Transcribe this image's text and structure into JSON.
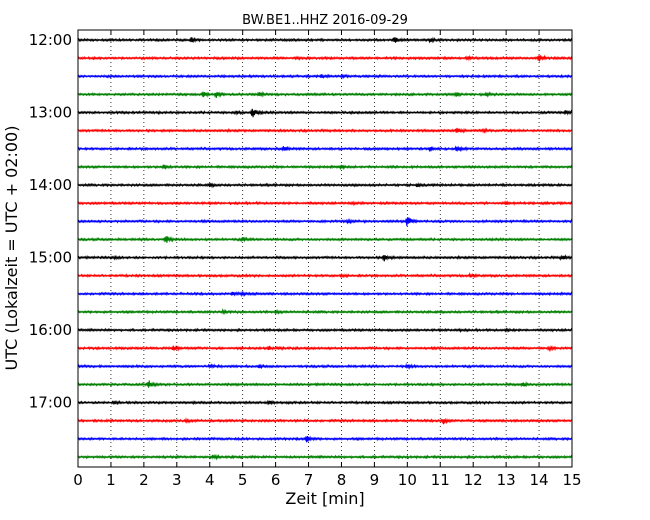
{
  "chart_data": {
    "type": "line",
    "title": "BW.BE1..HHZ 2016-09-29",
    "xlabel": "Zeit  [min]",
    "ylabel": "UTC (Lokalzeit = UTC + 02:00)",
    "xlim": [
      0,
      15
    ],
    "x_ticks": [
      "0",
      "1",
      "2",
      "3",
      "4",
      "5",
      "6",
      "7",
      "8",
      "9",
      "10",
      "11",
      "12",
      "13",
      "14",
      "15"
    ],
    "y_ticks": [
      "12:00",
      "13:00",
      "14:00",
      "15:00",
      "16:00",
      "17:00"
    ],
    "grid": "vertical-dotted",
    "trace_colors": [
      "#000000",
      "#ff0000",
      "#0000ff",
      "#008000"
    ],
    "traces": [
      {
        "start": "12:00",
        "events": [
          {
            "t": 3.45,
            "amp": 0.22
          },
          {
            "t": 9.6,
            "amp": 0.3
          },
          {
            "t": 10.7,
            "amp": 0.2
          }
        ]
      },
      {
        "start": "12:15",
        "events": [
          {
            "t": 6.6,
            "amp": 0.1
          },
          {
            "t": 11.8,
            "amp": 0.15
          },
          {
            "t": 14.0,
            "amp": 0.35
          }
        ]
      },
      {
        "start": "12:30",
        "events": [
          {
            "t": 7.4,
            "amp": 0.15
          },
          {
            "t": 8.0,
            "amp": 0.1
          }
        ]
      },
      {
        "start": "12:45",
        "events": [
          {
            "t": 3.8,
            "amp": 0.25
          },
          {
            "t": 4.2,
            "amp": 0.3
          },
          {
            "t": 5.5,
            "amp": 0.2
          },
          {
            "t": 11.5,
            "amp": 0.2
          },
          {
            "t": 12.4,
            "amp": 0.18
          }
        ]
      },
      {
        "start": "13:00",
        "events": [
          {
            "t": 5.3,
            "amp": 0.55
          },
          {
            "t": 4.8,
            "amp": 0.15
          },
          {
            "t": 14.8,
            "amp": 0.25
          }
        ]
      },
      {
        "start": "13:15",
        "events": [
          {
            "t": 11.5,
            "amp": 0.35
          },
          {
            "t": 12.3,
            "amp": 0.12
          }
        ]
      },
      {
        "start": "13:30",
        "events": [
          {
            "t": 6.25,
            "amp": 0.3
          },
          {
            "t": 10.7,
            "amp": 0.2
          },
          {
            "t": 11.5,
            "amp": 0.25
          }
        ]
      },
      {
        "start": "13:45",
        "events": [
          {
            "t": 2.6,
            "amp": 0.25
          },
          {
            "t": 8.0,
            "amp": 0.15
          }
        ]
      },
      {
        "start": "14:00",
        "events": [
          {
            "t": 4.0,
            "amp": 0.15
          },
          {
            "t": 10.3,
            "amp": 0.15
          }
        ]
      },
      {
        "start": "14:15",
        "events": [
          {
            "t": 8.3,
            "amp": 0.1
          },
          {
            "t": 13.0,
            "amp": 0.12
          }
        ]
      },
      {
        "start": "14:30",
        "events": [
          {
            "t": 10.0,
            "amp": 0.6
          },
          {
            "t": 8.2,
            "amp": 0.12
          }
        ]
      },
      {
        "start": "14:45",
        "events": [
          {
            "t": 2.65,
            "amp": 0.55
          },
          {
            "t": 5.0,
            "amp": 0.2
          }
        ]
      },
      {
        "start": "15:00",
        "events": [
          {
            "t": 9.3,
            "amp": 0.35
          },
          {
            "t": 14.7,
            "amp": 0.25
          },
          {
            "t": 1.1,
            "amp": 0.12
          }
        ]
      },
      {
        "start": "15:15",
        "events": [
          {
            "t": 11.9,
            "amp": 0.15
          },
          {
            "t": 8.0,
            "amp": 0.1
          }
        ]
      },
      {
        "start": "15:30",
        "events": [
          {
            "t": 4.7,
            "amp": 0.2
          },
          {
            "t": 5.0,
            "amp": 0.15
          }
        ]
      },
      {
        "start": "15:45",
        "events": [
          {
            "t": 4.4,
            "amp": 0.12
          },
          {
            "t": 6.0,
            "amp": 0.1
          }
        ]
      },
      {
        "start": "16:00",
        "events": [
          {
            "t": 11.5,
            "amp": 0.1
          },
          {
            "t": 13.0,
            "amp": 0.1
          }
        ]
      },
      {
        "start": "16:15",
        "events": [
          {
            "t": 2.9,
            "amp": 0.3
          },
          {
            "t": 5.8,
            "amp": 0.15
          },
          {
            "t": 14.3,
            "amp": 0.15
          }
        ]
      },
      {
        "start": "16:30",
        "events": [
          {
            "t": 4.0,
            "amp": 0.15
          },
          {
            "t": 5.5,
            "amp": 0.12
          },
          {
            "t": 10.0,
            "amp": 0.2
          }
        ]
      },
      {
        "start": "16:45",
        "events": [
          {
            "t": 2.15,
            "amp": 0.4
          },
          {
            "t": 13.5,
            "amp": 0.25
          }
        ]
      },
      {
        "start": "17:00",
        "events": [
          {
            "t": 5.8,
            "amp": 0.12
          },
          {
            "t": 1.1,
            "amp": 0.1
          }
        ]
      },
      {
        "start": "17:15",
        "events": [
          {
            "t": 11.1,
            "amp": 0.3
          },
          {
            "t": 3.3,
            "amp": 0.1
          }
        ]
      },
      {
        "start": "17:30",
        "events": [
          {
            "t": 6.95,
            "amp": 0.35
          }
        ]
      },
      {
        "start": "17:45",
        "events": [
          {
            "t": 4.1,
            "amp": 0.25
          }
        ]
      }
    ]
  }
}
